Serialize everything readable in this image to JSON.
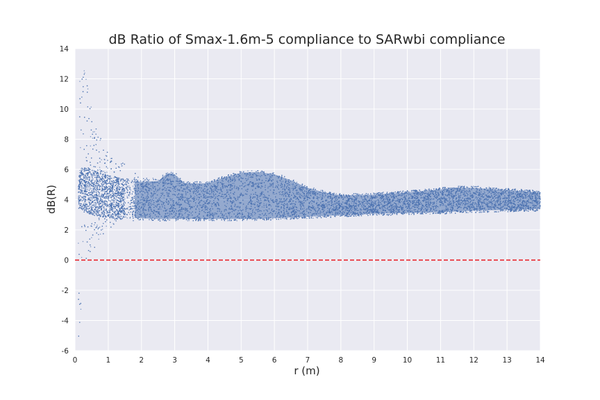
{
  "chart_data": {
    "type": "scatter",
    "title": "dB Ratio of Smax-1.6m-5 compliance to SARwbi compliance",
    "xlabel": "r (m)",
    "ylabel": "dB(R)",
    "xlim": [
      0,
      14
    ],
    "ylim": [
      -6,
      14
    ],
    "xticks": [
      "0",
      "1",
      "2",
      "3",
      "4",
      "5",
      "6",
      "7",
      "8",
      "9",
      "10",
      "11",
      "12",
      "13",
      "14"
    ],
    "yticks": [
      "-6",
      "-4",
      "-2",
      "0",
      "2",
      "4",
      "6",
      "8",
      "10",
      "12",
      "14"
    ],
    "grid": true,
    "colors": {
      "background": "#eaeaf2",
      "grid": "#ffffff",
      "points": "#4c72b0",
      "reference_line": "#e8141c"
    },
    "reference_line": {
      "y": 0,
      "style": "dashed"
    },
    "series": [
      {
        "envelope": {
          "x": [
            0.05,
            0.15,
            0.25,
            0.5,
            0.75,
            1.0,
            1.25,
            1.5,
            2.0,
            2.5,
            2.8,
            3.0,
            3.3,
            4.0,
            4.5,
            5.0,
            5.5,
            6.0,
            6.5,
            7.0,
            7.5,
            8.0,
            8.5,
            9.0,
            10.0,
            11.0,
            11.5,
            12.0,
            13.0,
            14.0
          ],
          "upper": [
            -5.5,
            13.7,
            13.0,
            10.0,
            8.2,
            7.0,
            6.6,
            6.4,
            5.5,
            5.5,
            5.9,
            5.8,
            5.2,
            5.2,
            5.6,
            5.9,
            5.95,
            5.8,
            5.4,
            4.9,
            4.6,
            4.4,
            4.4,
            4.45,
            4.6,
            4.8,
            4.9,
            4.9,
            4.75,
            4.6
          ],
          "lower": [
            -6.0,
            -4.5,
            -0.8,
            0.5,
            1.4,
            2.0,
            2.4,
            2.6,
            2.6,
            2.55,
            2.55,
            2.6,
            2.6,
            2.6,
            2.6,
            2.6,
            2.6,
            2.65,
            2.7,
            2.75,
            2.8,
            2.85,
            2.9,
            2.95,
            3.0,
            3.05,
            3.1,
            3.15,
            3.2,
            3.25
          ],
          "dense_lower": [
            3.0,
            3.5,
            3.2,
            3.0,
            2.9,
            2.8,
            2.7,
            2.7,
            2.65,
            2.6,
            2.6,
            2.6,
            2.6,
            2.6,
            2.6,
            2.6,
            2.6,
            2.65,
            2.7,
            2.75,
            2.8,
            2.85,
            2.9,
            2.95,
            3.0,
            3.05,
            3.1,
            3.15,
            3.2,
            3.25
          ],
          "dense_upper": [
            5.0,
            6.0,
            6.2,
            6.0,
            5.8,
            5.6,
            5.5,
            5.4,
            5.3,
            5.35,
            5.9,
            5.8,
            5.2,
            5.2,
            5.6,
            5.9,
            5.95,
            5.8,
            5.4,
            4.9,
            4.6,
            4.4,
            4.4,
            4.45,
            4.6,
            4.8,
            4.9,
            4.9,
            4.75,
            4.6
          ]
        }
      }
    ]
  }
}
